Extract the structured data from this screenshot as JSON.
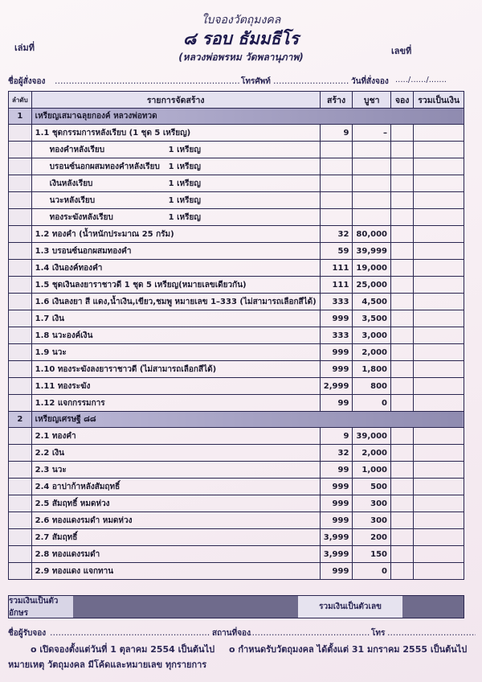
{
  "header": {
    "title": "ใบจองวัตถุมงคล",
    "subtitle": "๘ รอบ ธัมมธีโร",
    "subtitle2": "(หลวงพ่อพรหม วัดพลานุภาพ)",
    "book_no_label": "เล่มที่",
    "number_label": "เลขที่",
    "orderer_label": "ชื่อผู้สั่งจอง",
    "phone_label": "โทรศัพท์",
    "date_label": "วันที่สั่งจอง",
    "date_placeholder": "...../....../......."
  },
  "table": {
    "columns": [
      "ลำดับ",
      "รายการจัดสร้าง",
      "สร้าง",
      "บูชา",
      "จอง",
      "รวมเป็นเงิน"
    ],
    "sections": [
      {
        "index": "1",
        "title": "เหรียญเสมาฉลุยกองค์ หลวงพ่อทวด",
        "rows": [
          {
            "item": "1.1 ชุดกรรมการหลังเรียบ    (1 ชุด 5 เหรียญ)",
            "qty": "",
            "built": "9",
            "price": "–"
          },
          {
            "item": "ทองคำหลังเรียบ",
            "qty": "1 เหรียญ",
            "built": "",
            "price": ""
          },
          {
            "item": "บรอนซ์นอกผสมทองคำหลังเรียบ",
            "qty": "1 เหรียญ",
            "built": "",
            "price": ""
          },
          {
            "item": "เงินหลังเรียบ",
            "qty": "1 เหรียญ",
            "built": "",
            "price": ""
          },
          {
            "item": "นวะหลังเรียบ",
            "qty": "1 เหรียญ",
            "built": "",
            "price": ""
          },
          {
            "item": "ทองระฆังหลังเรียบ",
            "qty": "1 เหรียญ",
            "built": "",
            "price": ""
          },
          {
            "item": "1.2 ทองคำ (น้ำหนักประมาณ 25 กรัม)",
            "qty": "",
            "built": "32",
            "price": "80,000"
          },
          {
            "item": "1.3 บรอนซ์นอกผสมทองคำ",
            "qty": "",
            "built": "59",
            "price": "39,999"
          },
          {
            "item": "1.4 เงินองค์ทองคำ",
            "qty": "",
            "built": "111",
            "price": "19,000"
          },
          {
            "item": "1.5 ชุดเงินลงยาราชาวดี  1 ชุด 5 เหรียญ(หมายเลขเดียวกัน)",
            "qty": "",
            "built": "111",
            "price": "25,000"
          },
          {
            "item": "1.6 เงินลงยา สี แดง,น้ำเงิน,เขียว,ชมพู หมายเลข 1–333 (ไม่สามารถเลือกสีได้)",
            "qty": "",
            "built": "333",
            "price": "4,500"
          },
          {
            "item": "1.7 เงิน",
            "qty": "",
            "built": "999",
            "price": "3,500"
          },
          {
            "item": "1.8 นวะองค์เงิน",
            "qty": "",
            "built": "333",
            "price": "3,000"
          },
          {
            "item": "1.9 นวะ",
            "qty": "",
            "built": "999",
            "price": "2,000"
          },
          {
            "item": "1.10  ทองระฆังลงยาราชาวดี (ไม่สามารถเลือกสีได้)",
            "qty": "",
            "built": "999",
            "price": "1,800"
          },
          {
            "item": "1.11  ทองระฆัง",
            "qty": "",
            "built": "2,999",
            "price": "800"
          },
          {
            "item": "1.12  แจกกรรมการ",
            "qty": "",
            "built": "99",
            "price": "0"
          }
        ]
      },
      {
        "index": "2",
        "title": "เหรียญเศรษฐี ๘๘",
        "rows": [
          {
            "item": "2.1 ทองคำ",
            "qty": "",
            "built": "9",
            "price": "39,000"
          },
          {
            "item": "2.2 เงิน",
            "qty": "",
            "built": "32",
            "price": "2,000"
          },
          {
            "item": "2.3 นวะ",
            "qty": "",
            "built": "99",
            "price": "1,000"
          },
          {
            "item": "2.4 อาปาก้าหลังสัมฤทธิ์",
            "qty": "",
            "built": "999",
            "price": "500"
          },
          {
            "item": "2.5 สัมฤทธิ์ หมดห่วง",
            "qty": "",
            "built": "999",
            "price": "300"
          },
          {
            "item": "2.6 ทองแดงรมดำ หมดห่วง",
            "qty": "",
            "built": "999",
            "price": "300"
          },
          {
            "item": "2.7 สัมฤทธิ์",
            "qty": "",
            "built": "3,999",
            "price": "200"
          },
          {
            "item": "2.8 ทองแดงรมดำ",
            "qty": "",
            "built": "3,999",
            "price": "150"
          },
          {
            "item": "2.9 ทองแดง แจกทาน",
            "qty": "",
            "built": "999",
            "price": "0"
          }
        ]
      }
    ]
  },
  "totals": {
    "text_label": "รวมเงินเป็นตัวอักษร",
    "number_label": "รวมเงินเป็นตัวเลข"
  },
  "footer": {
    "receiver_label": "ชื่อผู้รับจอง",
    "place_label": "สถานที่จอง",
    "phone_label": "โทร",
    "note_open": "o เปิดจองตั้งแต่วันที่ 1 ตุลาคม 2554 เป็นต้นไป",
    "note_receive": "o กำหนดรับวัตถุมงคล ได้ตั้งแต่ 31 มกราคม 2555 เป็นต้นไป",
    "remark": "หมายเหตุ วัตถุมงคล มีโค้ดและหมายเลข ทุกรายการ"
  },
  "colors": {
    "ink": "#2a2650",
    "section_fill": "#8f8bb0",
    "header_fill": "#e4e1f0",
    "paper": "#f7eef3"
  }
}
